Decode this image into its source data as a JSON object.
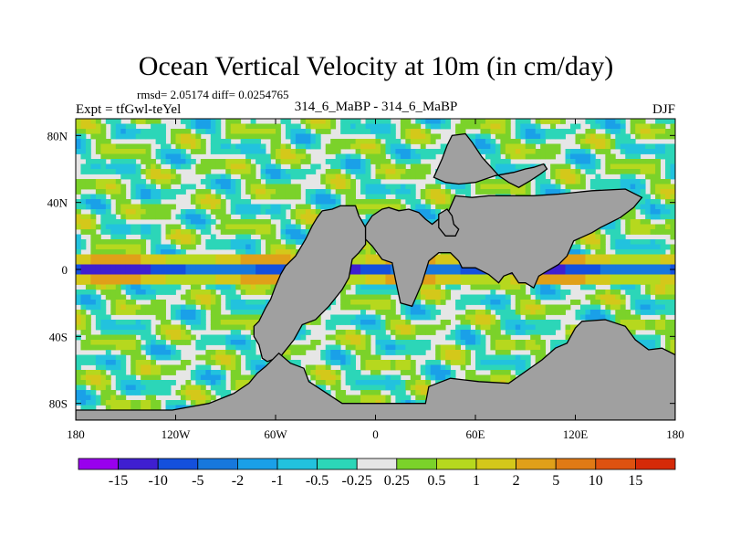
{
  "chart_data": {
    "type": "heatmap",
    "title": "Ocean Vertical Velocity at 10m (in cm/day)",
    "stats": "rmsd= 2.05174 diff= 0.0254765",
    "left_label": "Expt = tfGwl-teYel",
    "center_label": "314_6_MaBP - 314_6_MaBP",
    "right_label": "DJF",
    "xlim": [
      -180,
      180
    ],
    "ylim": [
      -90,
      90
    ],
    "x_ticks": [
      {
        "value": -180,
        "label": "180"
      },
      {
        "value": -120,
        "label": "120W"
      },
      {
        "value": -60,
        "label": "60W"
      },
      {
        "value": 0,
        "label": "0"
      },
      {
        "value": 60,
        "label": "60E"
      },
      {
        "value": 120,
        "label": "120E"
      },
      {
        "value": 180,
        "label": "180"
      }
    ],
    "y_ticks": [
      {
        "value": 80,
        "label": "80N"
      },
      {
        "value": 40,
        "label": "40N"
      },
      {
        "value": 0,
        "label": "0"
      },
      {
        "value": -40,
        "label": "40S"
      },
      {
        "value": -80,
        "label": "80S"
      }
    ],
    "colorbar": {
      "labels": [
        "-15",
        "-10",
        "-5",
        "-2",
        "-1",
        "-0.5",
        "-0.25",
        "0.25",
        "0.5",
        "1",
        "2",
        "5",
        "10",
        "15"
      ],
      "colors": [
        "#9900ee",
        "#3f1fd0",
        "#1450dd",
        "#1778dd",
        "#1aa0e8",
        "#22c2de",
        "#2cd6b8",
        "#e6e6e6",
        "#7bd22a",
        "#b6d81e",
        "#d4c81a",
        "#e0a019",
        "#e07a15",
        "#de5210",
        "#d52a08"
      ]
    },
    "land_color": "#a0a0a0",
    "neutral_color": "#e6e6e6"
  }
}
